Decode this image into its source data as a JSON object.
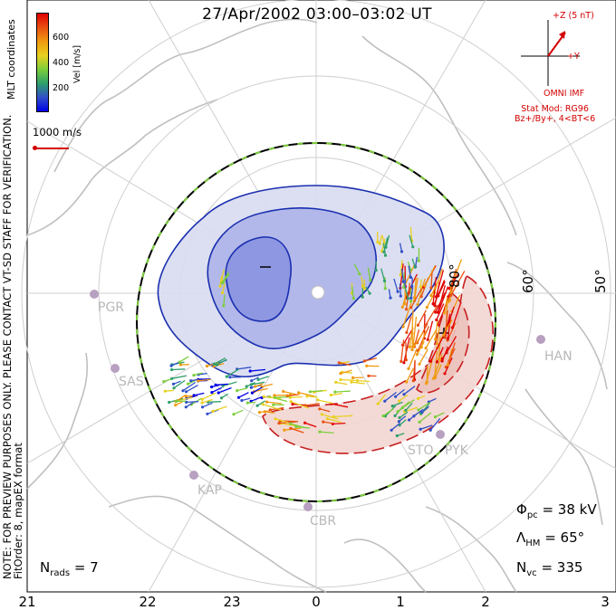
{
  "title": "27/Apr/2002 03:00–03:02 UT",
  "side_note_line1": "NOTE: FOR PREVIEW PURPOSES ONLY. PLEASE CONTACT VT-SD STAFF FOR VERIFICATION.",
  "side_note_line2": "FitOrder: 8, mapEX format",
  "coord_label": "MLT coordinates",
  "colorbar": {
    "unit": "Vel [m/s]",
    "ticks": [
      "600",
      "400",
      "200"
    ],
    "colors": [
      "#0000e6",
      "#3050c8",
      "#2ea06a",
      "#7ccd3a",
      "#e8d020",
      "#f09a10",
      "#e85010",
      "#e00000"
    ]
  },
  "reference_vector": "1000 m/s",
  "imf": {
    "z_label": "+Z (5 nT)",
    "y_label": "+Y",
    "source": "OMNI IMF",
    "stat_model_line1": "Stat Mod: RG96",
    "stat_model_line2": "Bz+/By+, 4<BT<6"
  },
  "stats": {
    "phi_symbol": "Φ",
    "phi_sub": "pc",
    "phi_value": "= 38 kV",
    "lambda_symbol": "Λ",
    "lambda_sub": "HM",
    "lambda_value": "= 65°",
    "nvc_symbol": "N",
    "nvc_sub": "vc",
    "nvc_value": "= 335"
  },
  "nrads": {
    "symbol": "N",
    "sub": "rads",
    "value": "= 7"
  },
  "mlt_ticks": [
    "21",
    "22",
    "23",
    "0",
    "1",
    "2",
    "3"
  ],
  "lat_labels": [
    "80°",
    "60°",
    "50°"
  ],
  "radar_sites": [
    "PGR",
    "SAS",
    "KAP",
    "CBR",
    "HAN",
    "PYK",
    "STO"
  ],
  "colors": {
    "map": "#c0c0c0",
    "negative_cell": "#1a2fb0",
    "positive_cell": "#c82020",
    "hm_boundary": "#000000",
    "hm_boundary_dash": "#7ccd3a"
  }
}
